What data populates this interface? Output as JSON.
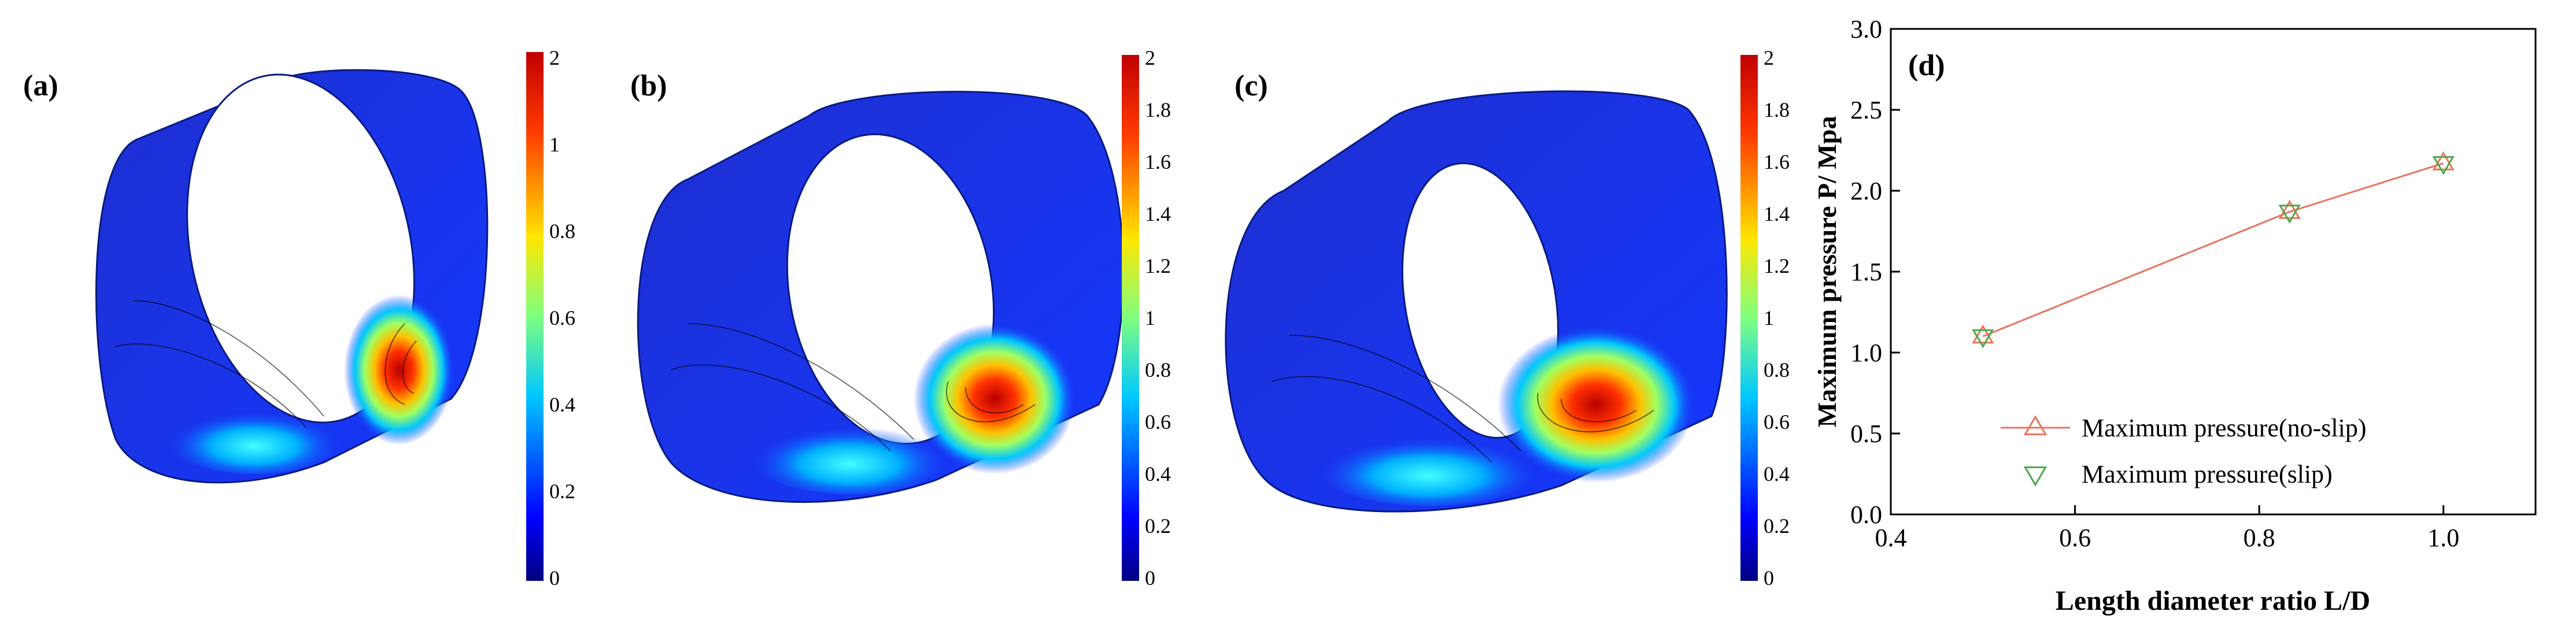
{
  "panels": [
    {
      "label": "(a)",
      "colorbar": {
        "ticks": [
          "2",
          "1",
          "0.8",
          "0.6",
          "0.4",
          "0.2",
          "0"
        ],
        "min": 0,
        "max": 2
      }
    },
    {
      "label": "(b)",
      "colorbar": {
        "ticks": [
          "2",
          "1.8",
          "1.6",
          "1.4",
          "1.2",
          "1",
          "0.8",
          "0.6",
          "0.4",
          "0.2",
          "0"
        ],
        "min": 0,
        "max": 2
      }
    },
    {
      "label": "(c)",
      "colorbar": {
        "ticks": [
          "2",
          "1.8",
          "1.6",
          "1.4",
          "1.2",
          "1",
          "0.8",
          "0.6",
          "0.4",
          "0.2",
          "0"
        ],
        "min": 0,
        "max": 2
      }
    }
  ],
  "chart_data": {
    "type": "line",
    "panel_label": "(d)",
    "xlabel": "Length diameter ratio L/D",
    "ylabel": "Maximum pressure P/ Mpa",
    "xlim": [
      0.4,
      1.1
    ],
    "ylim": [
      0.0,
      3.0
    ],
    "xticks": [
      "0.4",
      "0.6",
      "0.8",
      "1.0"
    ],
    "yticks": [
      "0.0",
      "0.5",
      "1.0",
      "1.5",
      "2.0",
      "2.5",
      "3.0"
    ],
    "legend_position": "bottom-right",
    "series": [
      {
        "name": "Maximum pressure(no-slip)",
        "marker": "triangle-up",
        "color": "#e8735f",
        "line": true,
        "x": [
          0.5,
          0.833,
          1.0
        ],
        "y": [
          1.1,
          1.87,
          2.17
        ]
      },
      {
        "name": "Maximum pressure(slip)",
        "marker": "triangle-down",
        "color": "#4aa84a",
        "line": false,
        "x": [
          0.5,
          0.833,
          1.0
        ],
        "y": [
          1.1,
          1.87,
          2.17
        ]
      }
    ]
  }
}
